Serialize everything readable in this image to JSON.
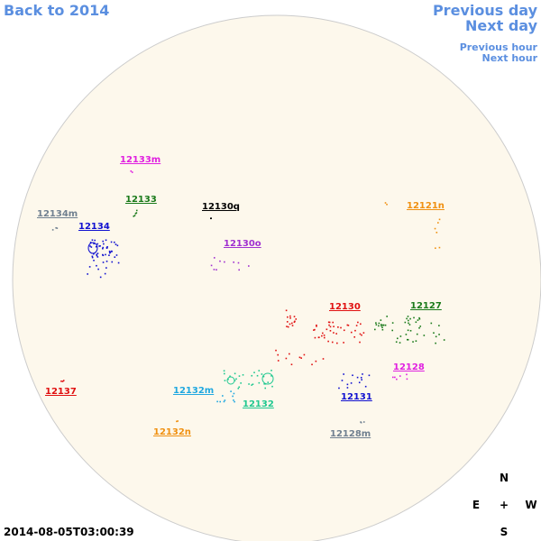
{
  "nav": {
    "back": "Back to 2014",
    "prev_day": "Previous day",
    "next_day": "Next day",
    "prev_hour": "Previous hour",
    "next_hour": "Next hour"
  },
  "timestamp": "2014-08-05T03:00:39",
  "compass": {
    "north": "N",
    "south": "S",
    "east": "E",
    "west": "W",
    "center": "+"
  },
  "regions": [
    {
      "label": "12133m",
      "color": "#e020e0"
    },
    {
      "label": "12133",
      "color": "#1a7a1a"
    },
    {
      "label": "12130q",
      "color": "#000000"
    },
    {
      "label": "12121n",
      "color": "#f09010"
    },
    {
      "label": "12134m",
      "color": "#708090"
    },
    {
      "label": "12134",
      "color": "#1010d0"
    },
    {
      "label": "12130o",
      "color": "#a030d0"
    },
    {
      "label": "12130",
      "color": "#e01010"
    },
    {
      "label": "12127",
      "color": "#1a7a1a"
    },
    {
      "label": "12128",
      "color": "#e020e0"
    },
    {
      "label": "12137",
      "color": "#e01010"
    },
    {
      "label": "12132m",
      "color": "#20a8e0"
    },
    {
      "label": "12131",
      "color": "#1010d0"
    },
    {
      "label": "12132",
      "color": "#20c890"
    },
    {
      "label": "12132n",
      "color": "#f09010"
    },
    {
      "label": "12128m",
      "color": "#708090"
    }
  ]
}
